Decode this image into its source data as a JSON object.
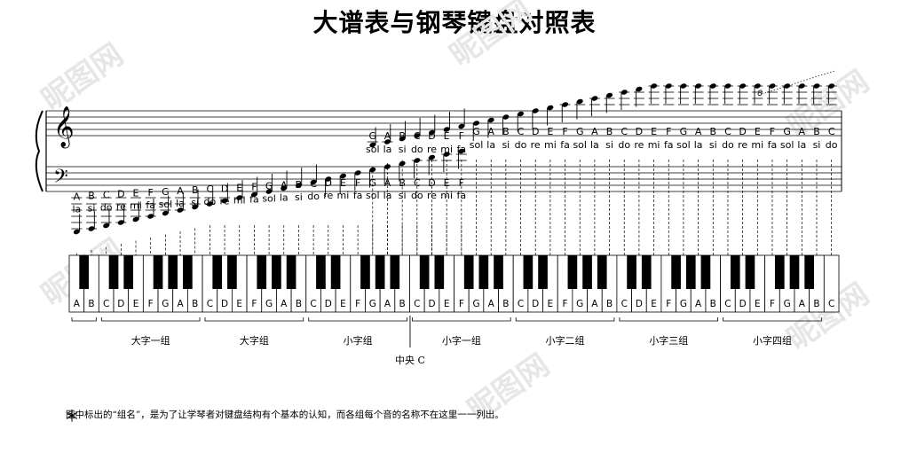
{
  "title": "大谱表与钢琴键盘对照表",
  "treble_clef": "𝄞",
  "bass_clef": "𝄢",
  "octave_mark": "8",
  "lower_notes": [
    {
      "letter": "A",
      "solfege": "la"
    },
    {
      "letter": "B",
      "solfege": "si"
    },
    {
      "letter": "C",
      "solfege": "do"
    },
    {
      "letter": "D",
      "solfege": "re"
    },
    {
      "letter": "E",
      "solfege": "mi"
    },
    {
      "letter": "F",
      "solfege": "fa"
    },
    {
      "letter": "G",
      "solfege": "sol"
    },
    {
      "letter": "A",
      "solfege": "la"
    },
    {
      "letter": "B",
      "solfege": "si"
    },
    {
      "letter": "C",
      "solfege": "do"
    },
    {
      "letter": "D",
      "solfege": "re"
    },
    {
      "letter": "E",
      "solfege": "mi"
    },
    {
      "letter": "F",
      "solfege": "fa"
    },
    {
      "letter": "G",
      "solfege": "sol"
    },
    {
      "letter": "A",
      "solfege": "la"
    },
    {
      "letter": "B",
      "solfege": "si"
    },
    {
      "letter": "C",
      "solfege": "do"
    },
    {
      "letter": "D",
      "solfege": "re"
    },
    {
      "letter": "E",
      "solfege": "mi"
    },
    {
      "letter": "F",
      "solfege": "fa"
    },
    {
      "letter": "G",
      "solfege": "sol"
    },
    {
      "letter": "A",
      "solfege": "la"
    },
    {
      "letter": "B",
      "solfege": "si"
    },
    {
      "letter": "C",
      "solfege": "do"
    },
    {
      "letter": "D",
      "solfege": "re"
    },
    {
      "letter": "E",
      "solfege": "mi"
    },
    {
      "letter": "F",
      "solfege": "fa"
    }
  ],
  "upper_notes": [
    {
      "letter": "G",
      "solfege": "sol"
    },
    {
      "letter": "A",
      "solfege": "la"
    },
    {
      "letter": "B",
      "solfege": "si"
    },
    {
      "letter": "C",
      "solfege": "do"
    },
    {
      "letter": "D",
      "solfege": "re"
    },
    {
      "letter": "E",
      "solfege": "mi"
    },
    {
      "letter": "F",
      "solfege": "fa"
    },
    {
      "letter": "G",
      "solfege": "sol"
    },
    {
      "letter": "A",
      "solfege": "la"
    },
    {
      "letter": "B",
      "solfege": "si"
    },
    {
      "letter": "C",
      "solfege": "do"
    },
    {
      "letter": "D",
      "solfege": "re"
    },
    {
      "letter": "E",
      "solfege": "mi"
    },
    {
      "letter": "F",
      "solfege": "fa"
    },
    {
      "letter": "G",
      "solfege": "sol"
    },
    {
      "letter": "A",
      "solfege": "la"
    },
    {
      "letter": "B",
      "solfege": "si"
    },
    {
      "letter": "C",
      "solfege": "do"
    },
    {
      "letter": "D",
      "solfege": "re"
    },
    {
      "letter": "E",
      "solfege": "mi"
    },
    {
      "letter": "F",
      "solfege": "fa"
    },
    {
      "letter": "G",
      "solfege": "sol"
    },
    {
      "letter": "A",
      "solfege": "la"
    },
    {
      "letter": "B",
      "solfege": "si"
    },
    {
      "letter": "C",
      "solfege": "do"
    },
    {
      "letter": "D",
      "solfege": "re"
    },
    {
      "letter": "E",
      "solfege": "mi"
    },
    {
      "letter": "F",
      "solfege": "fa"
    },
    {
      "letter": "G",
      "solfege": "sol"
    },
    {
      "letter": "A",
      "solfege": "la"
    },
    {
      "letter": "B",
      "solfege": "si"
    },
    {
      "letter": "C",
      "solfege": "do"
    }
  ],
  "white_keys": [
    "A",
    "B",
    "C",
    "D",
    "E",
    "F",
    "G",
    "A",
    "B",
    "C",
    "D",
    "E",
    "F",
    "G",
    "A",
    "B",
    "C",
    "D",
    "E",
    "F",
    "G",
    "A",
    "B",
    "C",
    "D",
    "E",
    "F",
    "G",
    "A",
    "B",
    "C",
    "D",
    "E",
    "F",
    "G",
    "A",
    "B",
    "C",
    "D",
    "E",
    "F",
    "G",
    "A",
    "B",
    "C",
    "D",
    "E",
    "F",
    "G",
    "A",
    "B",
    "C"
  ],
  "groups": [
    "大字一组",
    "大字组",
    "小字组",
    "小字一组",
    "小字二组",
    "小字三组",
    "小字四组"
  ],
  "middle_c_label": "中央 C",
  "footnote_mark": "＊",
  "footnote": "图中标出的“组名”，是为了让学琴者对键盘结构有个基本的认知，而各组每个音的名称不在这里一一列出。",
  "watermark_text": "昵图网",
  "colors": {
    "ink": "#000000",
    "paper": "#ffffff",
    "watermark": "#e6e6e6"
  }
}
